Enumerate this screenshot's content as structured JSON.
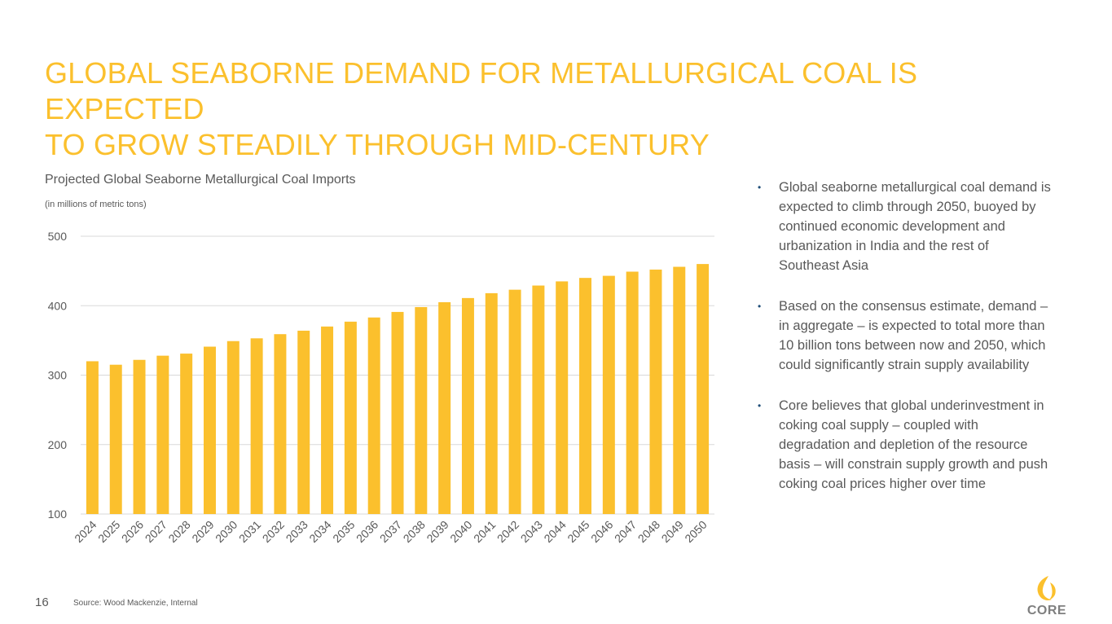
{
  "slide": {
    "title_lines": [
      "GLOBAL SEABORNE DEMAND FOR METALLURGICAL COAL IS EXPECTED",
      "TO GROW STEADILY THROUGH MID-CENTURY"
    ],
    "page_number": "16",
    "source": "Source: Wood Mackenzie, Internal",
    "logo_text": "CORE"
  },
  "colors": {
    "accent": "#fbc02d",
    "text": "#595959",
    "bullet": "#1f4e79",
    "gridline": "#d9d9d9"
  },
  "chart_data": {
    "type": "bar",
    "title": "Projected Global Seaborne Metallurgical Coal Imports",
    "subtitle": "(in millions of metric tons)",
    "xlabel": "",
    "ylabel": "",
    "ylim": [
      100,
      500
    ],
    "yticks": [
      100,
      200,
      300,
      400,
      500
    ],
    "grid": true,
    "categories": [
      "2024",
      "2025",
      "2026",
      "2027",
      "2028",
      "2029",
      "2030",
      "2031",
      "2032",
      "2033",
      "2034",
      "2035",
      "2036",
      "2037",
      "2038",
      "2039",
      "2040",
      "2041",
      "2042",
      "2043",
      "2044",
      "2045",
      "2046",
      "2047",
      "2048",
      "2049",
      "2050"
    ],
    "values": [
      320,
      315,
      322,
      328,
      331,
      341,
      349,
      353,
      359,
      364,
      370,
      377,
      383,
      391,
      398,
      405,
      411,
      418,
      423,
      429,
      435,
      440,
      443,
      449,
      452,
      456,
      460
    ]
  },
  "bullets": [
    "Global seaborne metallurgical coal demand is expected to climb through 2050, buoyed by continued economic development and urbanization in India and the rest of Southeast Asia",
    "Based on the consensus estimate, demand – in aggregate – is expected to total more than 10 billion tons between now and 2050, which could significantly strain supply availability",
    "Core believes that global underinvestment in coking coal supply – coupled with degradation and depletion of the resource basis – will constrain supply growth and push coking coal prices higher over time"
  ]
}
